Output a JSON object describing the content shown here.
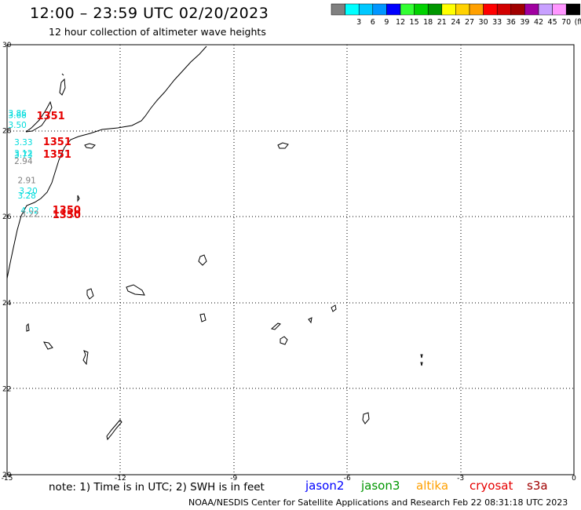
{
  "header": {
    "title": "12:00 – 23:59 UTC 02/20/2023",
    "subtitle": "12 hour collection of altimeter wave heights"
  },
  "legend": {
    "swatches": [
      {
        "color": "#808080",
        "label": ""
      },
      {
        "color": "#00ffff",
        "label": "3"
      },
      {
        "color": "#00c8ff",
        "label": "6"
      },
      {
        "color": "#0096ff",
        "label": "9"
      },
      {
        "color": "#0000ff",
        "label": "12"
      },
      {
        "color": "#32ff32",
        "label": "15"
      },
      {
        "color": "#00d200",
        "label": "18"
      },
      {
        "color": "#009600",
        "label": "21"
      },
      {
        "color": "#ffff00",
        "label": "24"
      },
      {
        "color": "#ffd200",
        "label": "27"
      },
      {
        "color": "#ffa000",
        "label": "30"
      },
      {
        "color": "#ff0000",
        "label": "33"
      },
      {
        "color": "#d20000",
        "label": "36"
      },
      {
        "color": "#a00000",
        "label": "39"
      },
      {
        "color": "#a000a0",
        "label": "42"
      },
      {
        "color": "#c8a0ff",
        "label": "45"
      },
      {
        "color": "#ff96ff",
        "label": "70"
      },
      {
        "color": "#000000",
        "label": "(ft)"
      }
    ]
  },
  "axes": {
    "x_ticks": [
      "-15",
      "-12",
      "-9",
      "-6",
      "-3",
      "0"
    ],
    "y_ticks": [
      "30",
      "28",
      "26",
      "24",
      "22",
      "20"
    ],
    "lon_range": [
      -15,
      0
    ],
    "lat_range": [
      20,
      30
    ]
  },
  "observations": [
    {
      "text": "3.86",
      "color": "#00dcdc",
      "lon": -14.97,
      "lat": 28.34
    },
    {
      "text": "3.68",
      "color": "#00dcdc",
      "lon": -14.97,
      "lat": 28.29
    },
    {
      "text": "3.50",
      "color": "#00dcdc",
      "lon": -14.97,
      "lat": 28.07
    },
    {
      "text": "1351",
      "color": "#e60000",
      "lon": -14.22,
      "lat": 28.27
    },
    {
      "text": "3.33",
      "color": "#00dcdc",
      "lon": -14.81,
      "lat": 27.66
    },
    {
      "text": "1351",
      "color": "#e60000",
      "lon": -14.05,
      "lat": 27.66
    },
    {
      "text": "3.12",
      "color": "#00dcdc",
      "lon": -14.81,
      "lat": 27.41
    },
    {
      "text": "3.73",
      "color": "#00dcdc",
      "lon": -14.81,
      "lat": 27.37
    },
    {
      "text": "1351",
      "color": "#e60000",
      "lon": -14.05,
      "lat": 27.37
    },
    {
      "text": "2.94",
      "color": "#808080",
      "lon": -14.81,
      "lat": 27.23
    },
    {
      "text": "2.91",
      "color": "#808080",
      "lon": -14.72,
      "lat": 26.78
    },
    {
      "text": "3.20",
      "color": "#00dcdc",
      "lon": -14.68,
      "lat": 26.53
    },
    {
      "text": "3.28",
      "color": "#00dcdc",
      "lon": -14.72,
      "lat": 26.42
    },
    {
      "text": "4.02",
      "color": "#00dcdc",
      "lon": -14.64,
      "lat": 26.08
    },
    {
      "text": "1350",
      "color": "#e60000",
      "lon": -13.8,
      "lat": 26.08
    },
    {
      "text": "3.22",
      "color": "#808080",
      "lon": -14.64,
      "lat": 25.99
    },
    {
      "text": "1350",
      "color": "#e60000",
      "lon": -13.8,
      "lat": 25.97
    }
  ],
  "notes": {
    "note_text": "note: 1) Time is in UTC; 2) SWH is in feet",
    "footer_text": "NOAA/NESDIS Center for Satellite Applications and Research    Feb 22 08:31:18 UTC 2023"
  },
  "satellites": [
    {
      "name": "jason2",
      "color": "#0000ff"
    },
    {
      "name": "jason3",
      "color": "#009600"
    },
    {
      "name": "altika",
      "color": "#ffa000"
    },
    {
      "name": "cryosat",
      "color": "#e60000"
    },
    {
      "name": "s3a",
      "color": "#a00000"
    }
  ]
}
